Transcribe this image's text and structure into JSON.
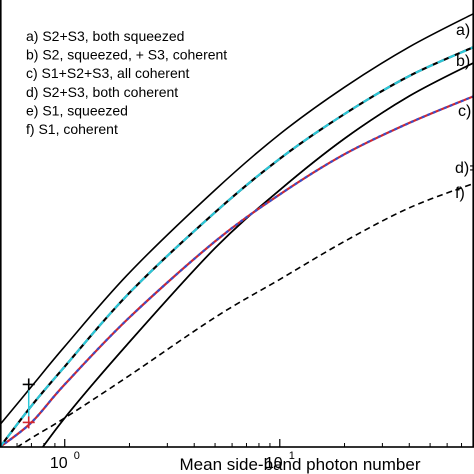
{
  "chart_data": {
    "type": "line",
    "title": "",
    "xlabel": "Mean side-band photon number",
    "ylabel": "",
    "x_scale": "log",
    "xlim": [
      0.5,
      80
    ],
    "ylim": [
      0,
      1
    ],
    "grid": false,
    "legend_position": "top-left",
    "x_ticks": [
      {
        "value": 1,
        "base": "10",
        "exp": "0"
      },
      {
        "value": 10,
        "base": "10",
        "exp": "1"
      }
    ],
    "series": [
      {
        "id": "a",
        "name": "a)  S2+S3, both squeezed",
        "end_label": "a)",
        "color": "#000000",
        "dash": "solid",
        "x": [
          0.5,
          0.7,
          1,
          2,
          5,
          10,
          20,
          40,
          80
        ],
        "y": [
          0.05,
          0.135,
          0.225,
          0.39,
          0.575,
          0.7,
          0.805,
          0.895,
          0.97
        ]
      },
      {
        "id": "b",
        "name": "b)  S2, squeezed, + S3, coherent",
        "end_label": "b)",
        "color": "#2bc7d8",
        "dash": "dashed",
        "x": [
          0.5,
          0.7,
          1,
          2,
          5,
          10,
          20,
          40,
          80
        ],
        "y": [
          0.0,
          0.092,
          0.18,
          0.345,
          0.525,
          0.645,
          0.745,
          0.83,
          0.895
        ]
      },
      {
        "id": "c",
        "name": "c)  S1+S2+S3, all coherent",
        "end_label": "c)",
        "color": "#000000",
        "dash": "solid",
        "x": [
          0.6,
          1,
          2,
          5,
          10,
          20,
          40,
          80
        ],
        "y": [
          -0.08,
          0.065,
          0.235,
          0.445,
          0.575,
          0.69,
          0.785,
          0.86
        ]
      },
      {
        "id": "d",
        "name": "d)  S2+S3, both coherent",
        "end_label": "d)=",
        "color": "#d2262e",
        "secondary_color": "#3a4fc9",
        "dash": "solid",
        "x": [
          0.5,
          0.7,
          1,
          2,
          5,
          10,
          20,
          40,
          80
        ],
        "y": [
          0.0,
          0.055,
          0.14,
          0.29,
          0.46,
          0.565,
          0.655,
          0.725,
          0.785
        ]
      },
      {
        "id": "e",
        "name": "e)  S1, squeezed",
        "end_label": "",
        "color": "#000000",
        "dash": "solid",
        "x": [
          0.6,
          1,
          2,
          5,
          10,
          20,
          40,
          80
        ],
        "y": [
          -0.08,
          0.065,
          0.235,
          0.445,
          0.575,
          0.69,
          0.785,
          0.86
        ]
      },
      {
        "id": "f",
        "name": "f)  S1, coherent",
        "end_label": "f)",
        "color": "#000000",
        "dash": "dashed",
        "x": [
          0.5,
          0.7,
          1,
          2,
          5,
          10,
          20,
          40,
          80
        ],
        "y": [
          -0.025,
          0.02,
          0.065,
          0.16,
          0.29,
          0.375,
          0.46,
          0.535,
          0.59
        ]
      }
    ],
    "markers": [
      {
        "symbol": "+",
        "color": "#000000",
        "x": 0.68,
        "y": 0.14
      },
      {
        "symbol": "+",
        "color": "#d2262e",
        "x": 0.68,
        "y": 0.055
      }
    ]
  }
}
